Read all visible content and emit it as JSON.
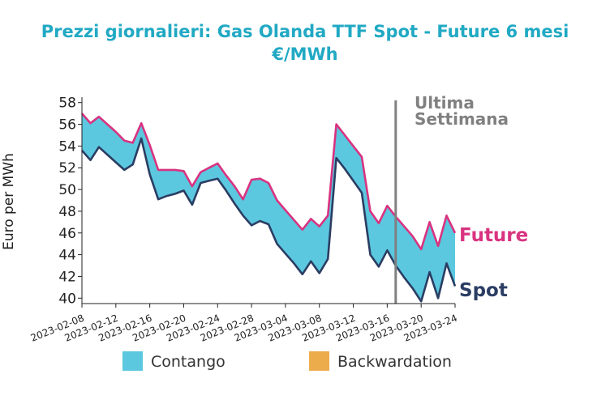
{
  "chart_data": {
    "type": "area",
    "title": "Prezzi giornalieri: Gas Olanda TTF Spot - Future 6 mesi",
    "subtitle": "€/MWh",
    "ylabel": "Euro per MWh",
    "xlabel": "",
    "ylim": [
      39.5,
      58.5
    ],
    "yticks": [
      40,
      42,
      44,
      46,
      48,
      50,
      52,
      54,
      56,
      58
    ],
    "xlim": [
      "2023-02-08",
      "2023-03-24"
    ],
    "xticks": [
      "2023-02-08",
      "2023-02-12",
      "2023-02-16",
      "2023-02-20",
      "2023-02-24",
      "2023-02-28",
      "2023-03-04",
      "2023-03-08",
      "2023-03-12",
      "2023-03-16",
      "2023-03-20",
      "2023-03-24"
    ],
    "x": [
      "2023-02-08",
      "2023-02-09",
      "2023-02-10",
      "2023-02-11",
      "2023-02-12",
      "2023-02-13",
      "2023-02-14",
      "2023-02-15",
      "2023-02-16",
      "2023-02-17",
      "2023-02-18",
      "2023-02-19",
      "2023-02-20",
      "2023-02-21",
      "2023-02-22",
      "2023-02-23",
      "2023-02-24",
      "2023-02-25",
      "2023-02-26",
      "2023-02-27",
      "2023-02-28",
      "2023-03-01",
      "2023-03-02",
      "2023-03-03",
      "2023-03-04",
      "2023-03-05",
      "2023-03-06",
      "2023-03-07",
      "2023-03-08",
      "2023-03-09",
      "2023-03-10",
      "2023-03-11",
      "2023-03-12",
      "2023-03-13",
      "2023-03-14",
      "2023-03-15",
      "2023-03-16",
      "2023-03-17",
      "2023-03-18",
      "2023-03-19",
      "2023-03-20",
      "2023-03-21",
      "2023-03-22",
      "2023-03-23",
      "2023-03-24"
    ],
    "series": [
      {
        "name": "Spot",
        "color": "#2b3d63",
        "values": [
          53.6,
          52.7,
          53.9,
          53.2,
          52.5,
          51.8,
          52.3,
          54.7,
          51.4,
          49.1,
          49.4,
          49.6,
          49.9,
          48.6,
          50.6,
          50.8,
          51.0,
          49.9,
          48.7,
          47.6,
          46.7,
          47.1,
          46.8,
          45.0,
          44.1,
          43.2,
          42.2,
          43.4,
          42.3,
          43.6,
          52.9,
          51.9,
          50.8,
          49.7,
          44.0,
          42.9,
          44.4,
          43.0,
          41.9,
          40.9,
          39.7,
          42.4,
          40.0,
          43.2,
          41.1
        ]
      },
      {
        "name": "Future",
        "color": "#d93380",
        "values": [
          57.0,
          56.1,
          56.7,
          56.0,
          55.3,
          54.5,
          54.3,
          56.1,
          54.1,
          51.8,
          51.8,
          51.8,
          51.7,
          50.3,
          51.6,
          52.0,
          52.4,
          51.3,
          50.3,
          49.1,
          50.9,
          51.0,
          50.6,
          49.0,
          48.1,
          47.2,
          46.3,
          47.3,
          46.6,
          47.6,
          56.0,
          55.0,
          54.0,
          53.0,
          48.0,
          46.9,
          48.5,
          47.5,
          46.6,
          45.7,
          44.5,
          47.0,
          44.8,
          47.6,
          46.0
        ]
      }
    ],
    "fills": [
      {
        "name": "Contango",
        "color": "#5bc8df"
      },
      {
        "name": "Backwardation",
        "color": "#edac4c"
      }
    ],
    "vline": {
      "x": "2023-03-17",
      "label_lines": [
        "Ultima",
        "Settimana"
      ],
      "color": "#808080"
    },
    "end_labels": {
      "future": "Future",
      "spot": "Spot"
    },
    "legend_placement": "bottom",
    "grid": false
  }
}
